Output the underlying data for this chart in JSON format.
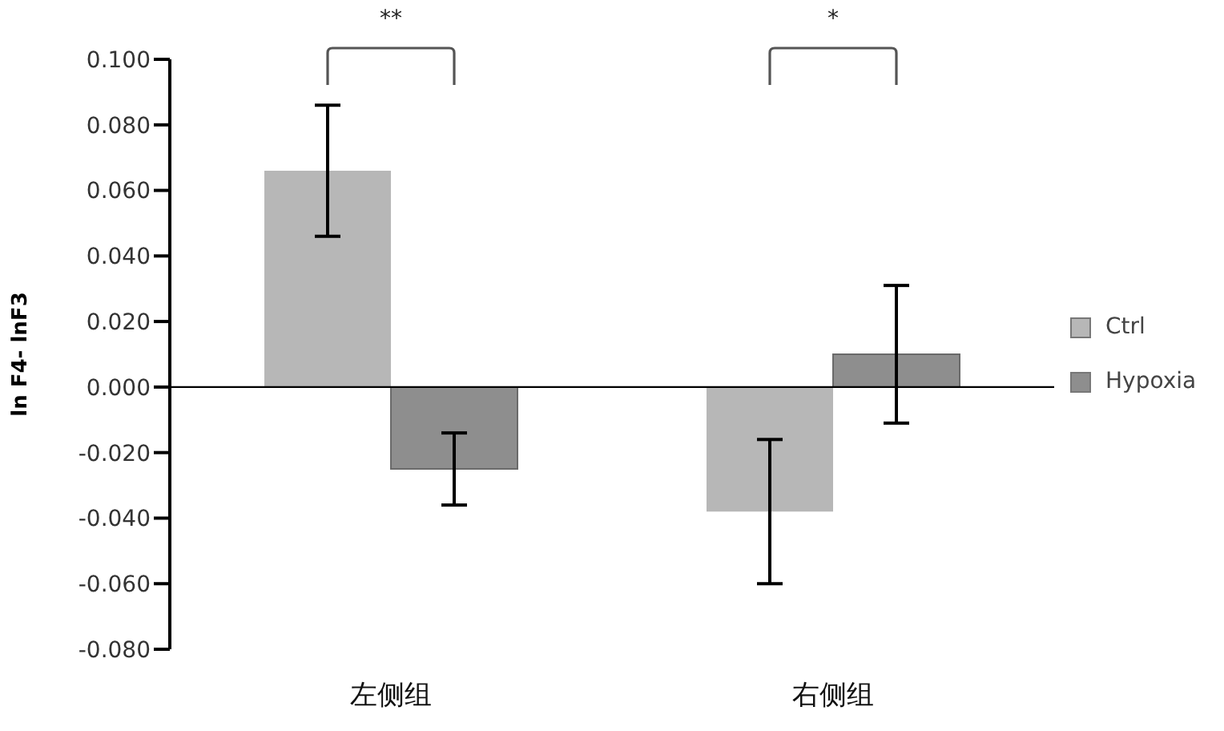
{
  "chart_data": {
    "type": "bar",
    "ylabel": "ln F4- lnF3",
    "categories": [
      "左侧组",
      "右侧组"
    ],
    "series": [
      {
        "name": "Ctrl",
        "color": "#b7b7b7",
        "values": [
          0.066,
          -0.038
        ],
        "errors": [
          0.02,
          0.022
        ]
      },
      {
        "name": "Hypoxia",
        "color": "#8e8e8e",
        "values": [
          -0.025,
          0.01
        ],
        "errors": [
          0.011,
          0.021
        ]
      }
    ],
    "ylim": [
      -0.08,
      0.1
    ],
    "yticks": [
      {
        "value": -0.08,
        "label": "-0.080"
      },
      {
        "value": -0.06,
        "label": "-0.060"
      },
      {
        "value": -0.04,
        "label": "-0.040"
      },
      {
        "value": -0.02,
        "label": "-0.020"
      },
      {
        "value": 0,
        "label": "0.000"
      },
      {
        "value": 0.02,
        "label": "0.020"
      },
      {
        "value": 0.04,
        "label": "0.040"
      },
      {
        "value": 0.06,
        "label": "0.060"
      },
      {
        "value": 0.08,
        "label": "0.080"
      },
      {
        "value": 0.1,
        "label": "0.100"
      }
    ],
    "legend": "right",
    "annotations": [
      "**",
      "*"
    ]
  }
}
